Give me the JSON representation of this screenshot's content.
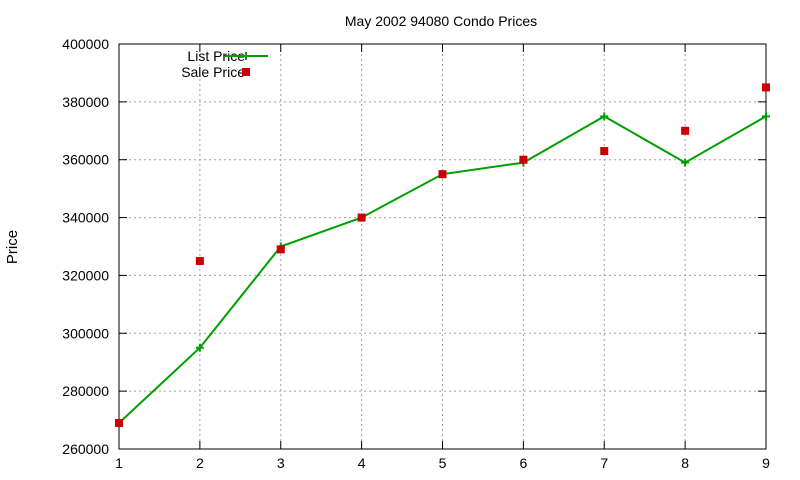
{
  "chart_data": {
    "type": "line",
    "title": "May 2002 94080 Condo Prices",
    "xlabel": "",
    "ylabel": "Price",
    "xlim": [
      1,
      9
    ],
    "ylim": [
      260000,
      400000
    ],
    "x_ticks": [
      "1",
      "2",
      "3",
      "4",
      "5",
      "6",
      "7",
      "8",
      "9"
    ],
    "y_ticks": [
      "260000",
      "280000",
      "300000",
      "320000",
      "340000",
      "360000",
      "380000",
      "400000"
    ],
    "grid": true,
    "legend_position": "top-left",
    "x": [
      1,
      2,
      3,
      4,
      5,
      6,
      7,
      8,
      9
    ],
    "series": [
      {
        "name": "List Price",
        "style": "line-with-plus-markers",
        "color": "#00a000",
        "values": [
          269000,
          295000,
          330000,
          340000,
          355000,
          359000,
          375000,
          359000,
          375000
        ]
      },
      {
        "name": "Sale Price",
        "style": "square-markers",
        "color": "#cc0000",
        "values": [
          269000,
          325000,
          329000,
          340000,
          355000,
          360000,
          363000,
          370000,
          385000
        ]
      }
    ]
  }
}
